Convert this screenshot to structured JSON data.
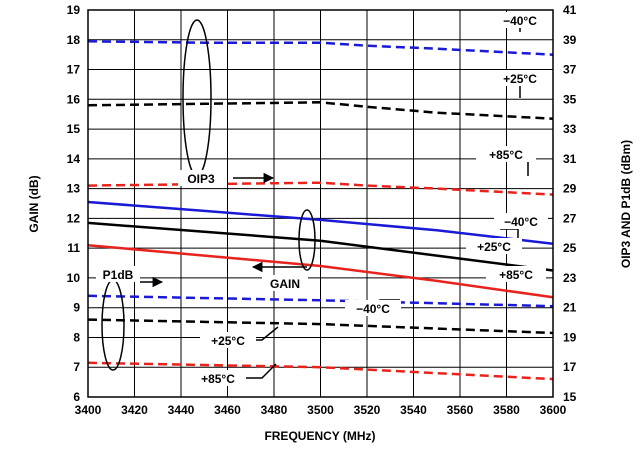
{
  "chart_data": {
    "type": "line",
    "xlabel": "FREQUENCY (MHz)",
    "ylabel": "GAIN (dB)",
    "y2label": "OIP3 AND P1dB (dBm)",
    "xlim": [
      3400,
      3600
    ],
    "ylim": [
      6,
      19
    ],
    "y2lim": [
      15,
      41
    ],
    "grid": true,
    "x_ticks": [
      3400,
      3420,
      3440,
      3460,
      3480,
      3500,
      3520,
      3540,
      3560,
      3580,
      3600
    ],
    "y_ticks": [
      6,
      7,
      8,
      9,
      10,
      11,
      12,
      13,
      14,
      15,
      16,
      17,
      18,
      19
    ],
    "y2_ticks": [
      15,
      17,
      19,
      21,
      23,
      25,
      27,
      29,
      31,
      33,
      35,
      37,
      39,
      41
    ],
    "colors": {
      "minus40C": "#1a1ad6",
      "plus25C": "#000000",
      "plus85C": "#e8231d"
    },
    "series": [
      {
        "group": "OIP3",
        "name": "−40°C",
        "axis": "right",
        "dashed": true,
        "color": "#1a1ad6",
        "x": [
          3400,
          3450,
          3500,
          3520,
          3550,
          3600
        ],
        "y": [
          38.9,
          38.8,
          38.8,
          38.6,
          38.4,
          38.0
        ]
      },
      {
        "group": "OIP3",
        "name": "+25°C",
        "axis": "right",
        "dashed": true,
        "color": "#000000",
        "x": [
          3400,
          3450,
          3500,
          3520,
          3550,
          3600
        ],
        "y": [
          34.6,
          34.7,
          34.8,
          34.5,
          34.1,
          33.7
        ]
      },
      {
        "group": "OIP3",
        "name": "+85°C",
        "axis": "right",
        "dashed": true,
        "color": "#e8231d",
        "x": [
          3400,
          3450,
          3500,
          3520,
          3550,
          3600
        ],
        "y": [
          29.2,
          29.3,
          29.4,
          29.2,
          29.0,
          28.6
        ]
      },
      {
        "group": "GAIN",
        "name": "−40°C",
        "axis": "left",
        "dashed": false,
        "color": "#1a1ad6",
        "x": [
          3400,
          3450,
          3500,
          3550,
          3600
        ],
        "y": [
          12.55,
          12.25,
          11.95,
          11.6,
          11.15
        ]
      },
      {
        "group": "GAIN",
        "name": "+25°C",
        "axis": "left",
        "dashed": false,
        "color": "#000000",
        "x": [
          3400,
          3450,
          3500,
          3550,
          3600
        ],
        "y": [
          11.85,
          11.55,
          11.25,
          10.75,
          10.25
        ]
      },
      {
        "group": "GAIN",
        "name": "+85°C",
        "axis": "left",
        "dashed": false,
        "color": "#e8231d",
        "x": [
          3400,
          3450,
          3500,
          3550,
          3600
        ],
        "y": [
          11.1,
          10.75,
          10.4,
          9.9,
          9.35
        ]
      },
      {
        "group": "P1dB",
        "name": "−40°C",
        "axis": "right",
        "dashed": true,
        "color": "#1a1ad6",
        "x": [
          3400,
          3500,
          3600
        ],
        "y": [
          21.8,
          21.5,
          21.1
        ]
      },
      {
        "group": "P1dB",
        "name": "+25°C",
        "axis": "right",
        "dashed": true,
        "color": "#000000",
        "x": [
          3400,
          3500,
          3600
        ],
        "y": [
          20.2,
          19.9,
          19.3
        ]
      },
      {
        "group": "P1dB",
        "name": "+85°C",
        "axis": "right",
        "dashed": true,
        "color": "#e8231d",
        "x": [
          3400,
          3500,
          3600
        ],
        "y": [
          17.3,
          17.0,
          16.2
        ]
      }
    ],
    "annotations": {
      "oip3": "OIP3",
      "gain": "GAIN",
      "p1db": "P1dB",
      "t_oip3_m40": "−40°C",
      "t_oip3_p25": "+25°C",
      "t_oip3_p85": "+85°C",
      "t_gain_m40": "−40°C",
      "t_gain_p25": "+25°C",
      "t_gain_p85": "+85°C",
      "t_p1db_m40": "−40°C",
      "t_p1db_p25": "+25°C",
      "t_p1db_p85": "+85°C"
    }
  }
}
